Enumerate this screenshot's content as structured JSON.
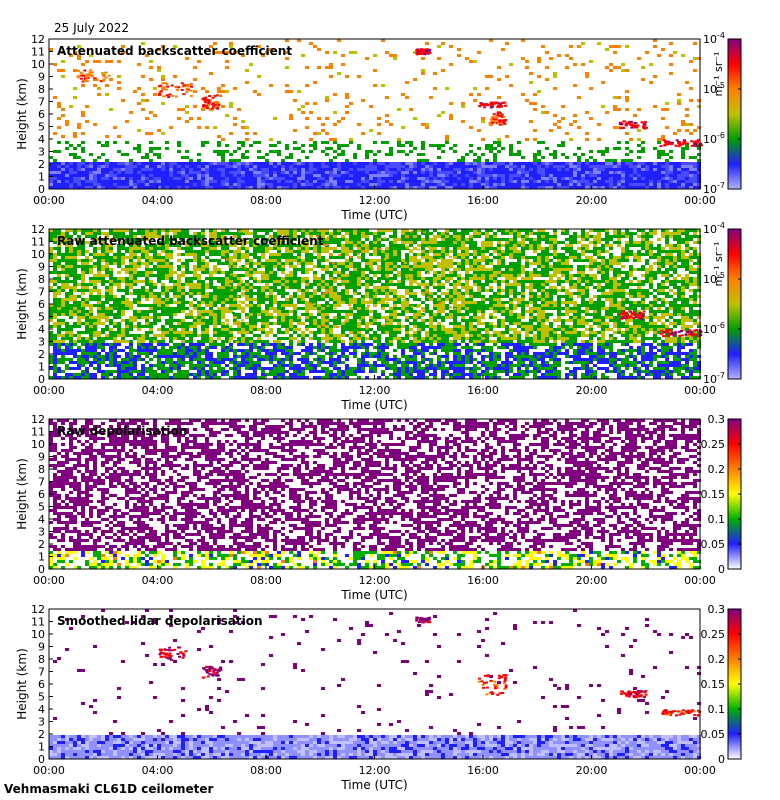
{
  "header": {
    "date_label": "25 July 2022"
  },
  "footer": {
    "instrument_label": "Vehmasmaki CL61D ceilometer"
  },
  "chart_data": [
    {
      "type": "heatmap",
      "title": "Attenuated backscatter coefficient",
      "xlabel": "Time (UTC)",
      "ylabel": "Height (km)",
      "x_ticks": [
        "00:00",
        "04:00",
        "08:00",
        "12:00",
        "16:00",
        "20:00",
        "00:00"
      ],
      "y_ticks": [
        0,
        1,
        2,
        3,
        4,
        5,
        6,
        7,
        8,
        9,
        10,
        11,
        12
      ],
      "ylim": [
        0,
        12
      ],
      "colorbar": {
        "scale": "log",
        "range": [
          1e-07,
          0.0001
        ],
        "ticks": [
          "10^-7",
          "10^-6",
          "10^-5",
          "10^-4"
        ],
        "unit": "m⁻¹ sr⁻¹"
      },
      "colors": [
        "#b0b0ff",
        "#2020ff",
        "#00a000",
        "#c0c000",
        "#ff8000",
        "#ff0000",
        "#800080"
      ],
      "boundary_layer_top_km": 2.2,
      "features": [
        {
          "label": "",
          "start_hour": 1,
          "end_hour": 2.2,
          "bottom_km": 8.6,
          "top_km": 9.6,
          "level": 0.7
        },
        {
          "label": "",
          "start_hour": 4,
          "end_hour": 5.2,
          "bottom_km": 7.4,
          "top_km": 8.6,
          "level": 0.75
        },
        {
          "label": "",
          "start_hour": 5.6,
          "end_hour": 6.3,
          "bottom_km": 6.5,
          "top_km": 7.6,
          "level": 0.8
        },
        {
          "label": "",
          "start_hour": 13.5,
          "end_hour": 14,
          "bottom_km": 10.8,
          "top_km": 11.3,
          "level": 0.85
        },
        {
          "label": "",
          "start_hour": 15.8,
          "end_hour": 16.8,
          "bottom_km": 6.6,
          "top_km": 7.0,
          "level": 0.85
        },
        {
          "label": "",
          "start_hour": 16.2,
          "end_hour": 16.8,
          "bottom_km": 5.2,
          "top_km": 6.2,
          "level": 0.75
        },
        {
          "label": "",
          "start_hour": 21,
          "end_hour": 22,
          "bottom_km": 4.9,
          "top_km": 5.5,
          "level": 0.85
        },
        {
          "label": "",
          "start_hour": 22.5,
          "end_hour": 24,
          "bottom_km": 3.5,
          "top_km": 4.0,
          "level": 0.85
        }
      ]
    },
    {
      "type": "heatmap",
      "title": "Raw attenuated backscatter coefficient",
      "xlabel": "Time (UTC)",
      "ylabel": "Height (km)",
      "x_ticks": [
        "00:00",
        "04:00",
        "08:00",
        "12:00",
        "16:00",
        "20:00",
        "00:00"
      ],
      "y_ticks": [
        0,
        1,
        2,
        3,
        4,
        5,
        6,
        7,
        8,
        9,
        10,
        11,
        12
      ],
      "ylim": [
        0,
        12
      ],
      "colorbar": {
        "scale": "log",
        "range": [
          1e-07,
          0.0001
        ],
        "ticks": [
          "10^-7",
          "10^-6",
          "10^-5",
          "10^-4"
        ],
        "unit": "m⁻¹ sr⁻¹"
      },
      "colors": [
        "#b0b0ff",
        "#2020ff",
        "#00a000",
        "#c0c000",
        "#ff8000",
        "#ff0000",
        "#800080"
      ],
      "background_noise": "high",
      "features": [
        {
          "label": "",
          "start_hour": 6.5,
          "end_hour": 7.2,
          "bottom_km": 3.0,
          "top_km": 12,
          "level": 0.5
        },
        {
          "label": "",
          "start_hour": 9.5,
          "end_hour": 12.5,
          "bottom_km": 4.0,
          "top_km": 12,
          "level": 0.6
        },
        {
          "label": "",
          "start_hour": 13,
          "end_hour": 15,
          "bottom_km": 5.0,
          "top_km": 12,
          "level": 0.55
        },
        {
          "label": "",
          "start_hour": 21,
          "end_hour": 22,
          "bottom_km": 4.9,
          "top_km": 5.5,
          "level": 0.85
        },
        {
          "label": "",
          "start_hour": 22.5,
          "end_hour": 24,
          "bottom_km": 3.5,
          "top_km": 4.0,
          "level": 0.85
        }
      ]
    },
    {
      "type": "heatmap",
      "title": "Raw depolarisation",
      "xlabel": "Time (UTC)",
      "ylabel": "Height (km)",
      "x_ticks": [
        "00:00",
        "04:00",
        "08:00",
        "12:00",
        "16:00",
        "20:00",
        "00:00"
      ],
      "y_ticks": [
        0,
        1,
        2,
        3,
        4,
        5,
        6,
        7,
        8,
        9,
        10,
        11,
        12
      ],
      "ylim": [
        0,
        12
      ],
      "colorbar": {
        "scale": "linear",
        "range": [
          0,
          0.3
        ],
        "ticks": [
          "0",
          "0.05",
          "0.1",
          "0.15",
          "0.2",
          "0.25",
          "0.3"
        ],
        "unit": ""
      },
      "colors": [
        "#ffffff",
        "#2020ff",
        "#00b000",
        "#ffff00",
        "#ff8000",
        "#ff0000",
        "#800080"
      ],
      "background_noise": "very high"
    },
    {
      "type": "heatmap",
      "title": "Smoothed lidar depolarisation",
      "xlabel": "Time (UTC)",
      "ylabel": "Height (km)",
      "x_ticks": [
        "00:00",
        "04:00",
        "08:00",
        "12:00",
        "16:00",
        "20:00",
        "00:00"
      ],
      "y_ticks": [
        0,
        1,
        2,
        3,
        4,
        5,
        6,
        7,
        8,
        9,
        10,
        11,
        12
      ],
      "ylim": [
        0,
        12
      ],
      "colorbar": {
        "scale": "linear",
        "range": [
          0,
          0.3
        ],
        "ticks": [
          "0",
          "0.05",
          "0.1",
          "0.15",
          "0.2",
          "0.25",
          "0.3"
        ],
        "unit": ""
      },
      "colors": [
        "#ffffff",
        "#2020ff",
        "#00b000",
        "#ffff00",
        "#ff8000",
        "#ff0000",
        "#800080"
      ],
      "boundary_layer_top_km": 2.0,
      "features": [
        {
          "label": "",
          "start_hour": 4,
          "end_hour": 5,
          "bottom_km": 8.0,
          "top_km": 9.0,
          "level": 0.9
        },
        {
          "label": "",
          "start_hour": 5.6,
          "end_hour": 6.3,
          "bottom_km": 6.5,
          "top_km": 7.5,
          "level": 0.95
        },
        {
          "label": "",
          "start_hour": 13.5,
          "end_hour": 14,
          "bottom_km": 11.0,
          "top_km": 11.4,
          "level": 0.95
        },
        {
          "label": "",
          "start_hour": 15.8,
          "end_hour": 16.8,
          "bottom_km": 5.2,
          "top_km": 6.8,
          "level": 0.8
        },
        {
          "label": "",
          "start_hour": 21,
          "end_hour": 22,
          "bottom_km": 5.0,
          "top_km": 5.6,
          "level": 0.85
        },
        {
          "label": "",
          "start_hour": 22.5,
          "end_hour": 24,
          "bottom_km": 3.5,
          "top_km": 4.0,
          "level": 0.8
        }
      ]
    }
  ]
}
